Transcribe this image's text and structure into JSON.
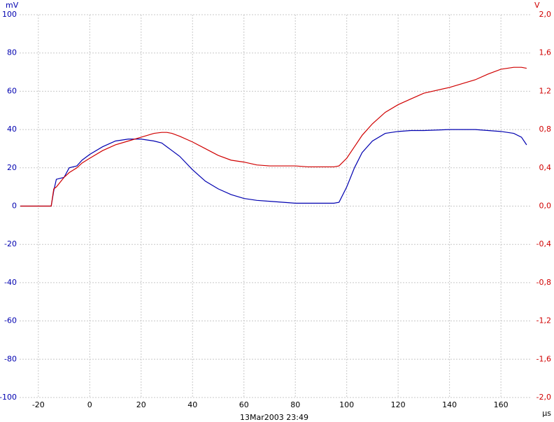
{
  "chart_data": {
    "type": "line",
    "y_unit": "mV",
    "y2_unit": "V",
    "x_unit": "µs",
    "timestamp": "13Mar2003  23:49",
    "x": [
      -27,
      -15,
      -14,
      -13,
      -10,
      -8,
      -5,
      -3,
      0,
      5,
      10,
      15,
      20,
      25,
      28,
      30,
      32,
      35,
      40,
      45,
      50,
      55,
      60,
      65,
      70,
      75,
      80,
      85,
      90,
      95,
      97,
      100,
      103,
      106,
      110,
      115,
      120,
      125,
      130,
      140,
      145,
      150,
      155,
      160,
      165,
      168,
      170
    ],
    "series": [
      {
        "color": "#0000b0",
        "values": [
          0,
          0,
          8,
          14,
          15,
          20,
          21,
          24,
          27,
          31,
          34,
          35,
          35,
          34,
          33,
          31,
          29,
          26,
          19,
          13,
          9,
          6,
          4,
          3,
          2.5,
          2,
          1.5,
          1.5,
          1.5,
          1.5,
          2,
          10,
          20,
          28,
          34,
          38,
          39,
          39.5,
          39.5,
          40,
          40,
          40,
          39.5,
          39,
          38,
          36,
          32
        ]
      },
      {
        "color": "#d00000",
        "axis": "y2",
        "values": [
          0,
          0,
          0.18,
          0.2,
          0.3,
          0.35,
          0.4,
          0.45,
          0.5,
          0.58,
          0.64,
          0.68,
          0.72,
          0.76,
          0.77,
          0.77,
          0.76,
          0.73,
          0.67,
          0.6,
          0.53,
          0.48,
          0.46,
          0.43,
          0.42,
          0.42,
          0.42,
          0.41,
          0.41,
          0.41,
          0.42,
          0.5,
          0.62,
          0.74,
          0.86,
          0.98,
          1.06,
          1.12,
          1.18,
          1.24,
          1.28,
          1.32,
          1.38,
          1.43,
          1.45,
          1.45,
          1.44
        ]
      }
    ],
    "xlim": [
      -27.3,
      171.4
    ],
    "xticks": [
      -20,
      0,
      20,
      40,
      60,
      80,
      100,
      120,
      140,
      160
    ],
    "ylim": [
      -100,
      100
    ],
    "yticks": [
      100,
      80,
      60,
      40,
      20,
      0,
      -20,
      -40,
      -60,
      -80,
      -100
    ],
    "y2lim": [
      -2,
      2
    ],
    "y2ticks": [
      {
        "value": 2,
        "label": "2,0"
      },
      {
        "value": 1.6,
        "label": "1,6"
      },
      {
        "value": 1.2,
        "label": "1,2"
      },
      {
        "value": 0.8,
        "label": "0,8"
      },
      {
        "value": 0.4,
        "label": "0,4"
      },
      {
        "value": 0,
        "label": "0,0"
      },
      {
        "value": -0.4,
        "label": "-0,4"
      },
      {
        "value": -0.8,
        "label": "-0,8"
      },
      {
        "value": -1.2,
        "label": "-1,2"
      },
      {
        "value": -1.6,
        "label": "-1,6"
      },
      {
        "value": -2,
        "label": "-2,0"
      }
    ],
    "grid": true
  }
}
